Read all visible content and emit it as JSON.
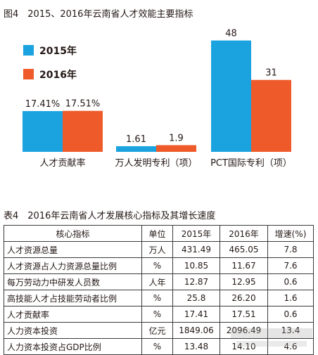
{
  "figure": {
    "title": "图4　2015、2016年云南省人才效能主要指标"
  },
  "chart_data": {
    "type": "bar",
    "categories": [
      "人才贡献率",
      "万人发明专利（项）",
      "PCT国际专利（项）"
    ],
    "series": [
      {
        "name": "2015年",
        "values": [
          17.41,
          1.61,
          48
        ],
        "labels": [
          "17.41%",
          "1.61",
          "48"
        ]
      },
      {
        "name": "2016年",
        "values": [
          17.51,
          1.9,
          31
        ],
        "labels": [
          "17.51%",
          "1.9",
          "31"
        ]
      }
    ],
    "colors": {
      "2015年": "#1aa3df",
      "2016年": "#ee5a2a"
    },
    "legend": "top-left",
    "grid": false
  },
  "table": {
    "title": "表4　2016年云南省人才发展核心指标及其增长速度",
    "headers": [
      "核心指标",
      "单位",
      "2015年",
      "2016年",
      "增速(%)"
    ],
    "rows": [
      [
        "人才资源总量",
        "万人",
        "431.49",
        "465.05",
        "7.8"
      ],
      [
        "人才资源占人力资源总量比例",
        "%",
        "10.85",
        "11.67",
        "7.6"
      ],
      [
        "每万劳动力中研发人员数",
        "人年",
        "12.87",
        "12.95",
        "0.6"
      ],
      [
        "高技能人才占技能劳动者比例",
        "%",
        "25.8",
        "26.20",
        "1.6"
      ],
      [
        "人才贡献率",
        "%",
        "17.41",
        "17.51",
        "0.6"
      ],
      [
        "人力资本投资",
        "亿元",
        "1849.06",
        "2096.49",
        "13.4"
      ],
      [
        "人力资本投资占GDP比例",
        "%",
        "13.48",
        "14.10",
        "4.6"
      ]
    ]
  }
}
